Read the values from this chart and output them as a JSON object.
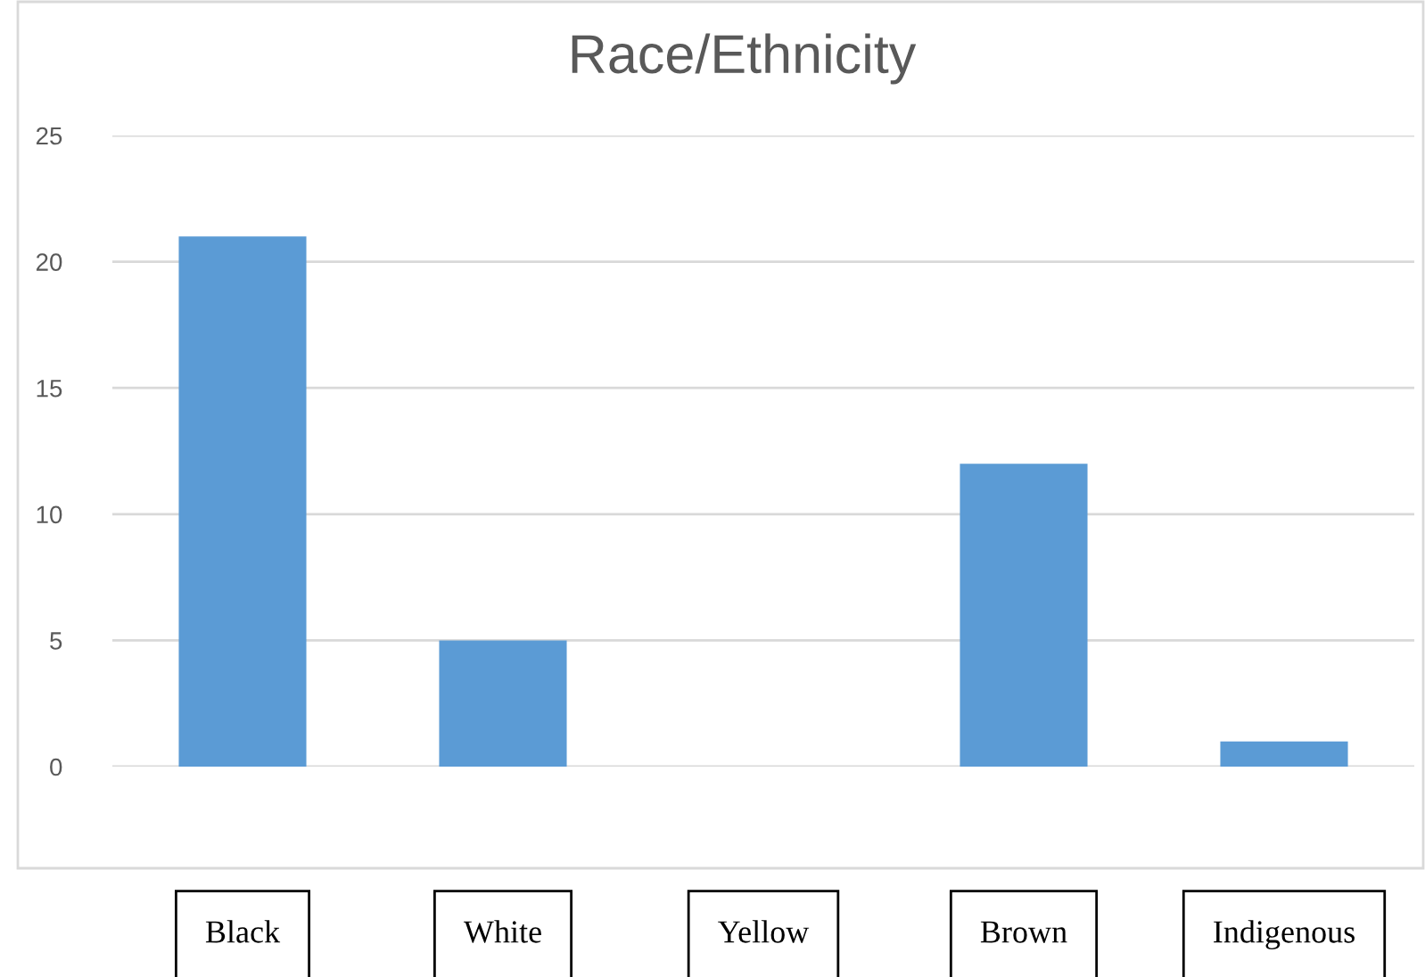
{
  "chart_data": {
    "type": "bar",
    "title": "Race/Ethnicity",
    "categories": [
      "Black",
      "White",
      "Yellow",
      "Brown",
      "Indigenous"
    ],
    "values": [
      21,
      5,
      0,
      12,
      1
    ],
    "color": "#5b9bd5",
    "ylim": [
      0,
      25
    ],
    "yticks": [
      0,
      5,
      10,
      15,
      20,
      25
    ],
    "grid": "y"
  }
}
